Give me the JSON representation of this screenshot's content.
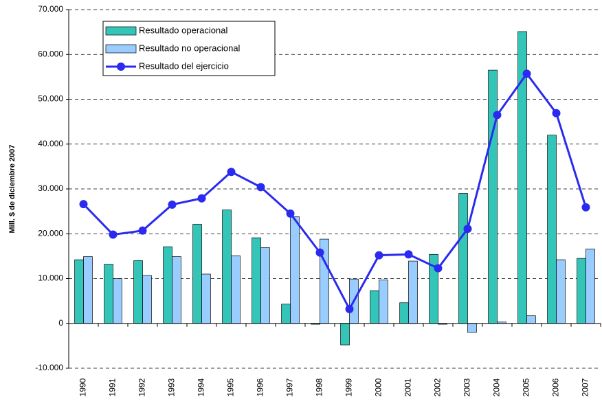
{
  "chart_data": {
    "type": "bar_line",
    "y_label": "Mill. $ de diciembre 2007",
    "categories": [
      "1990",
      "1991",
      "1992",
      "1993",
      "1994",
      "1995",
      "1996",
      "1997",
      "1998",
      "1999",
      "2000",
      "2001",
      "2002",
      "2003",
      "2004",
      "2005",
      "2006",
      "2007"
    ],
    "series": [
      {
        "name": "Resultado operacional",
        "type": "bar",
        "color": "#33c6b8",
        "values": [
          14200,
          13200,
          14000,
          17100,
          22100,
          25300,
          19100,
          4300,
          -200,
          -4800,
          7300,
          4600,
          15400,
          29000,
          56500,
          65100,
          42000,
          14500
        ]
      },
      {
        "name": "Resultado no operacional",
        "type": "bar",
        "color": "#99ccff",
        "values": [
          14900,
          10000,
          10700,
          14900,
          11000,
          15100,
          16900,
          23800,
          18800,
          9900,
          9700,
          13900,
          -200,
          -2000,
          300,
          1700,
          14200,
          16600
        ]
      },
      {
        "name": "Resultado del ejercicio",
        "type": "line",
        "color": "#2a2af0",
        "values": [
          26600,
          19800,
          20700,
          26500,
          27900,
          33800,
          30400,
          24500,
          15800,
          3200,
          15200,
          15400,
          12300,
          21100,
          46500,
          55700,
          46900,
          25900
        ]
      }
    ],
    "ylim": [
      -10000,
      70000
    ],
    "yticks": [
      {
        "value": -10000,
        "label": "-10.000"
      },
      0,
      {
        "value": 10000,
        "label": "10.000"
      },
      {
        "value": 20000,
        "label": "20.000"
      },
      {
        "value": 30000,
        "label": "30.000"
      },
      {
        "value": 40000,
        "label": "40.000"
      },
      {
        "value": 50000,
        "label": "50.000"
      },
      {
        "value": 60000,
        "label": "60.000"
      },
      {
        "value": 70000,
        "label": "70.000"
      }
    ],
    "grid": true,
    "legend": "upper left"
  }
}
